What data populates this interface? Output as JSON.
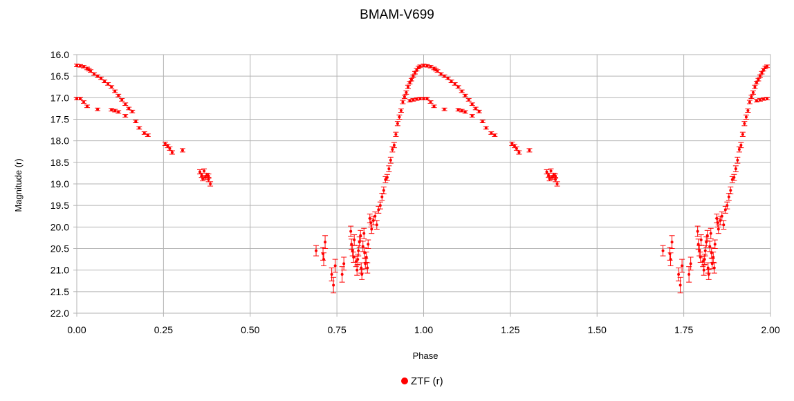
{
  "chart_data": {
    "type": "scatter",
    "title": "BMAM-V699",
    "xlabel": "Phase",
    "ylabel": "Magnitude (r)",
    "xlim": [
      0.0,
      2.0
    ],
    "ylim": [
      16.0,
      22.0
    ],
    "y_inverted": true,
    "grid": true,
    "legend_position": "bottom",
    "x_ticks": [
      "0.00",
      "0.25",
      "0.50",
      "0.75",
      "1.00",
      "1.25",
      "1.50",
      "1.75",
      "2.00"
    ],
    "y_ticks": [
      "16.0",
      "16.5",
      "17.0",
      "17.5",
      "18.0",
      "18.5",
      "19.0",
      "19.5",
      "20.0",
      "20.5",
      "21.0",
      "21.5",
      "22.0"
    ],
    "series": [
      {
        "name": "ZTF (r)",
        "color": "#ff0000",
        "error_bars": true,
        "points": [
          [
            0.0,
            16.25,
            0.03
          ],
          [
            0.01,
            16.26,
            0.03
          ],
          [
            0.02,
            16.28,
            0.03
          ],
          [
            0.03,
            16.32,
            0.03
          ],
          [
            0.035,
            16.35,
            0.03
          ],
          [
            0.04,
            16.38,
            0.03
          ],
          [
            0.05,
            16.45,
            0.03
          ],
          [
            0.06,
            16.5,
            0.03
          ],
          [
            0.07,
            16.55,
            0.03
          ],
          [
            0.08,
            16.62,
            0.03
          ],
          [
            0.09,
            16.68,
            0.03
          ],
          [
            0.1,
            16.75,
            0.03
          ],
          [
            0.11,
            16.85,
            0.03
          ],
          [
            0.12,
            16.95,
            0.03
          ],
          [
            0.13,
            17.05,
            0.03
          ],
          [
            0.14,
            17.15,
            0.03
          ],
          [
            0.15,
            17.25,
            0.03
          ],
          [
            0.16,
            17.32,
            0.03
          ],
          [
            0.0,
            17.02,
            0.03
          ],
          [
            0.01,
            17.02,
            0.03
          ],
          [
            0.02,
            17.1,
            0.03
          ],
          [
            0.03,
            17.2,
            0.03
          ],
          [
            0.06,
            17.27,
            0.03
          ],
          [
            0.1,
            17.28,
            0.03
          ],
          [
            0.11,
            17.3,
            0.03
          ],
          [
            0.12,
            17.33,
            0.03
          ],
          [
            0.14,
            17.42,
            0.03
          ],
          [
            0.17,
            17.55,
            0.03
          ],
          [
            0.18,
            17.7,
            0.03
          ],
          [
            0.195,
            17.82,
            0.03
          ],
          [
            0.205,
            17.87,
            0.03
          ],
          [
            0.255,
            18.07,
            0.04
          ],
          [
            0.262,
            18.12,
            0.04
          ],
          [
            0.268,
            18.18,
            0.04
          ],
          [
            0.275,
            18.27,
            0.04
          ],
          [
            0.305,
            18.22,
            0.04
          ],
          [
            0.355,
            18.72,
            0.05
          ],
          [
            0.36,
            18.8,
            0.05
          ],
          [
            0.363,
            18.88,
            0.05
          ],
          [
            0.367,
            18.7,
            0.05
          ],
          [
            0.37,
            18.85,
            0.05
          ],
          [
            0.375,
            18.8,
            0.05
          ],
          [
            0.38,
            18.9,
            0.05
          ],
          [
            0.385,
            19.0,
            0.05
          ],
          [
            0.38,
            18.82,
            0.05
          ],
          [
            0.69,
            20.55,
            0.12
          ],
          [
            0.71,
            20.62,
            0.15
          ],
          [
            0.712,
            20.75,
            0.15
          ],
          [
            0.716,
            20.35,
            0.15
          ],
          [
            0.735,
            21.1,
            0.15
          ],
          [
            0.74,
            21.35,
            0.18
          ],
          [
            0.745,
            20.9,
            0.15
          ],
          [
            0.765,
            21.1,
            0.18
          ],
          [
            0.77,
            20.85,
            0.15
          ],
          [
            0.79,
            20.1,
            0.12
          ],
          [
            0.792,
            20.4,
            0.12
          ],
          [
            0.795,
            20.55,
            0.12
          ],
          [
            0.798,
            20.7,
            0.12
          ],
          [
            0.8,
            20.3,
            0.12
          ],
          [
            0.805,
            20.8,
            0.12
          ],
          [
            0.808,
            21.0,
            0.12
          ],
          [
            0.81,
            20.75,
            0.12
          ],
          [
            0.812,
            20.55,
            0.12
          ],
          [
            0.815,
            20.35,
            0.12
          ],
          [
            0.818,
            20.2,
            0.12
          ],
          [
            0.82,
            20.95,
            0.12
          ],
          [
            0.822,
            21.1,
            0.12
          ],
          [
            0.825,
            20.45,
            0.12
          ],
          [
            0.828,
            20.15,
            0.12
          ],
          [
            0.83,
            20.6,
            0.12
          ],
          [
            0.832,
            20.85,
            0.12
          ],
          [
            0.835,
            20.7,
            0.12
          ],
          [
            0.838,
            20.95,
            0.12
          ],
          [
            0.84,
            20.4,
            0.1
          ],
          [
            0.845,
            19.8,
            0.1
          ],
          [
            0.848,
            19.9,
            0.1
          ],
          [
            0.85,
            20.05,
            0.1
          ],
          [
            0.855,
            19.85,
            0.1
          ],
          [
            0.86,
            19.75,
            0.1
          ],
          [
            0.865,
            19.95,
            0.1
          ],
          [
            0.87,
            19.6,
            0.08
          ],
          [
            0.875,
            19.5,
            0.08
          ],
          [
            0.88,
            19.3,
            0.08
          ],
          [
            0.885,
            19.15,
            0.08
          ],
          [
            0.89,
            18.9,
            0.07
          ],
          [
            0.895,
            18.85,
            0.07
          ],
          [
            0.9,
            18.65,
            0.07
          ],
          [
            0.905,
            18.45,
            0.07
          ],
          [
            0.91,
            18.2,
            0.06
          ],
          [
            0.915,
            18.1,
            0.06
          ],
          [
            0.92,
            17.85,
            0.05
          ],
          [
            0.925,
            17.6,
            0.05
          ],
          [
            0.93,
            17.45,
            0.05
          ],
          [
            0.935,
            17.3,
            0.04
          ],
          [
            0.94,
            17.1,
            0.04
          ],
          [
            0.945,
            16.98,
            0.04
          ],
          [
            0.95,
            16.88,
            0.04
          ],
          [
            0.955,
            16.75,
            0.04
          ],
          [
            0.96,
            16.65,
            0.03
          ],
          [
            0.965,
            16.58,
            0.03
          ],
          [
            0.97,
            16.5,
            0.03
          ],
          [
            0.975,
            16.42,
            0.03
          ],
          [
            0.98,
            16.35,
            0.03
          ],
          [
            0.985,
            16.3,
            0.03
          ],
          [
            0.99,
            16.27,
            0.03
          ],
          [
            0.96,
            17.07,
            0.03
          ],
          [
            0.97,
            17.05,
            0.03
          ],
          [
            0.98,
            17.03,
            0.03
          ],
          [
            0.99,
            17.02,
            0.03
          ]
        ]
      }
    ]
  },
  "legend": {
    "label": "ZTF (r)"
  }
}
